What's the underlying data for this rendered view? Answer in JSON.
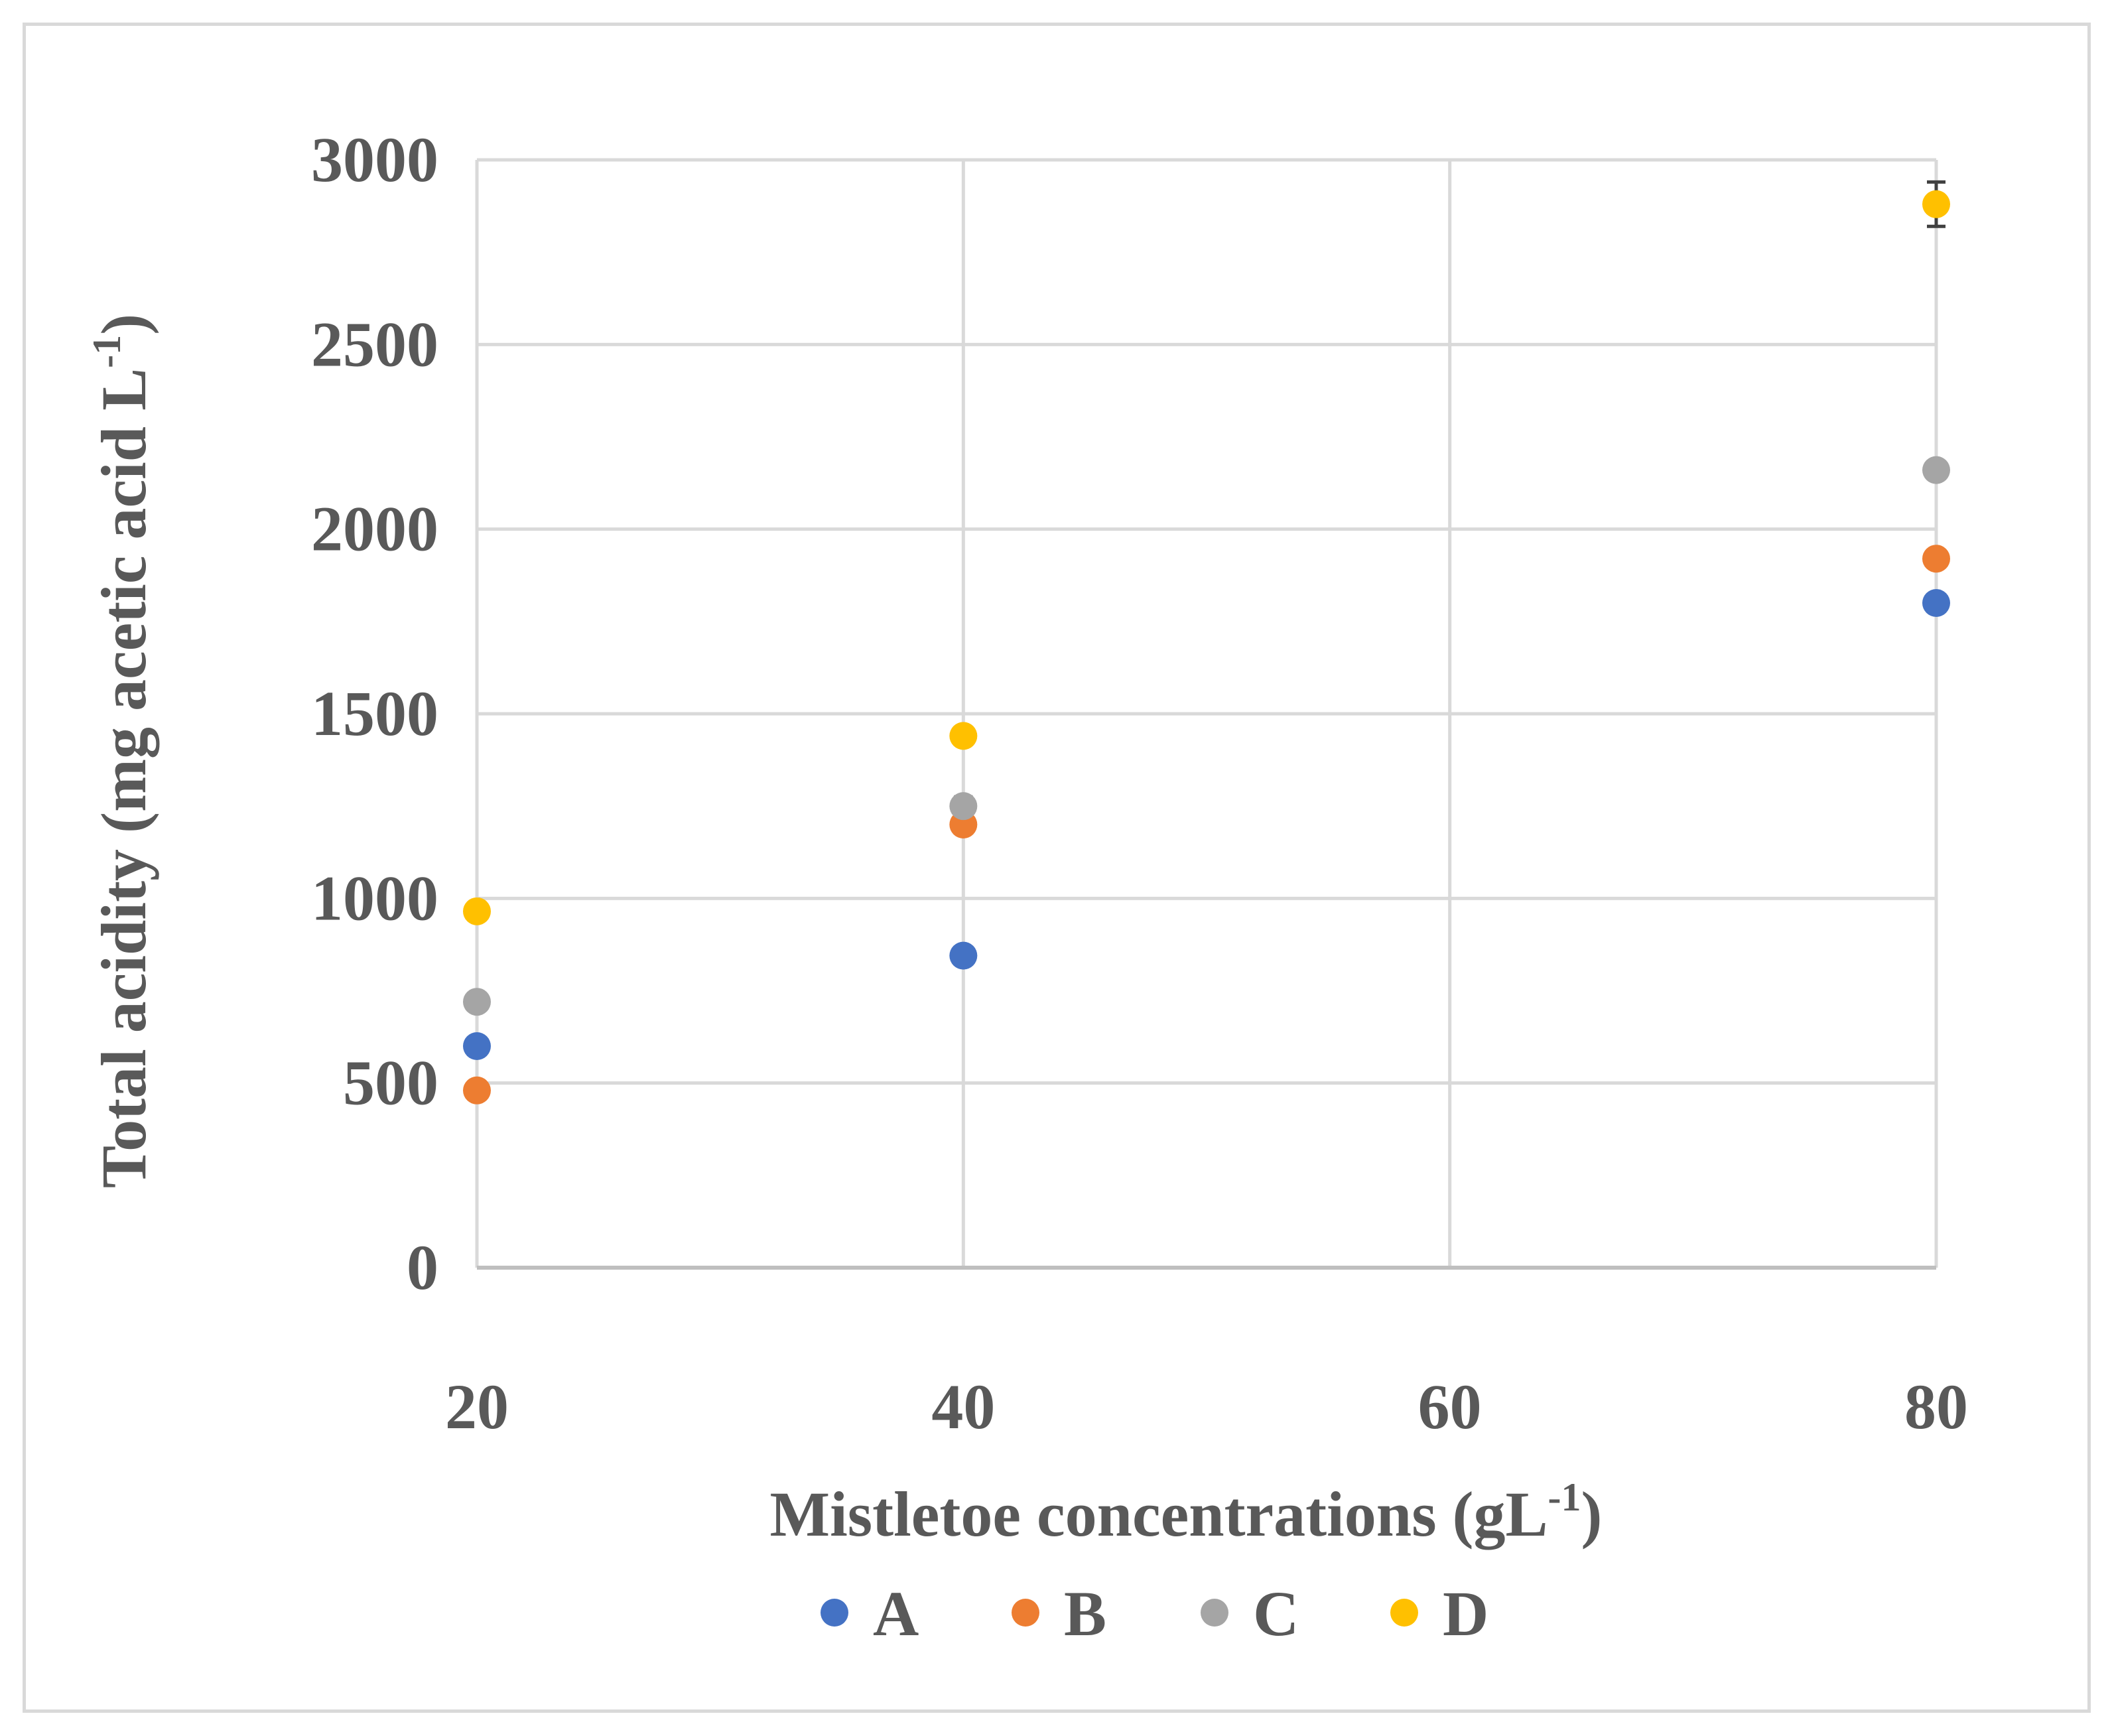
{
  "chart_data": {
    "type": "scatter",
    "title": "",
    "xlabel": "Mistletoe concentrations (gL",
    "xlabel_sup": "-1",
    "xlabel_suffix": ")",
    "ylabel": "Total acidity (mg acetic acid L",
    "ylabel_sup": "-1",
    "ylabel_suffix": ")",
    "xlim": [
      20,
      80
    ],
    "ylim": [
      0,
      3000
    ],
    "x_ticks": [
      "20",
      "40",
      "60",
      "80"
    ],
    "y_ticks": [
      "0",
      "500",
      "1000",
      "1500",
      "2000",
      "2500",
      "3000"
    ],
    "grid": true,
    "legend_position": "bottom",
    "series": [
      {
        "name": "A",
        "color": "#4472c4",
        "x": [
          20,
          40,
          80
        ],
        "y": [
          600,
          845,
          1800
        ]
      },
      {
        "name": "B",
        "color": "#ed7d31",
        "x": [
          20,
          40,
          80
        ],
        "y": [
          480,
          1200,
          1920
        ]
      },
      {
        "name": "C",
        "color": "#a5a5a5",
        "x": [
          20,
          40,
          80
        ],
        "y": [
          720,
          1250,
          2160
        ]
      },
      {
        "name": "D",
        "color": "#ffc000",
        "x": [
          20,
          40,
          80
        ],
        "y": [
          965,
          1440,
          2880
        ]
      }
    ],
    "error_bars": [
      {
        "series": "C",
        "x": 40,
        "y": 1250,
        "err": 25
      },
      {
        "series": "D",
        "x": 80,
        "y": 2880,
        "err": 60
      }
    ]
  }
}
